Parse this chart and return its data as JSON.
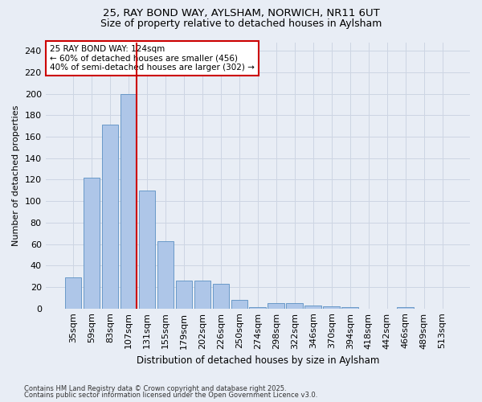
{
  "title1": "25, RAY BOND WAY, AYLSHAM, NORWICH, NR11 6UT",
  "title2": "Size of property relative to detached houses in Aylsham",
  "xlabel": "Distribution of detached houses by size in Aylsham",
  "ylabel": "Number of detached properties",
  "categories": [
    "35sqm",
    "59sqm",
    "83sqm",
    "107sqm",
    "131sqm",
    "155sqm",
    "179sqm",
    "202sqm",
    "226sqm",
    "250sqm",
    "274sqm",
    "298sqm",
    "322sqm",
    "346sqm",
    "370sqm",
    "394sqm",
    "418sqm",
    "442sqm",
    "466sqm",
    "489sqm",
    "513sqm"
  ],
  "values": [
    29,
    122,
    171,
    200,
    110,
    63,
    26,
    26,
    23,
    8,
    1,
    5,
    5,
    3,
    2,
    1,
    0,
    0,
    1,
    0,
    0
  ],
  "bar_color": "#aec6e8",
  "bar_edge_color": "#5a8fc2",
  "vline_color": "#cc0000",
  "annotation_text": "25 RAY BOND WAY: 124sqm\n← 60% of detached houses are smaller (456)\n40% of semi-detached houses are larger (302) →",
  "annotation_box_color": "#ffffff",
  "annotation_box_edge": "#cc0000",
  "ylim": [
    0,
    248
  ],
  "yticks": [
    0,
    20,
    40,
    60,
    80,
    100,
    120,
    140,
    160,
    180,
    200,
    220,
    240
  ],
  "grid_color": "#cdd5e3",
  "bg_color": "#e8edf5",
  "footer1": "Contains HM Land Registry data © Crown copyright and database right 2025.",
  "footer2": "Contains public sector information licensed under the Open Government Licence v3.0."
}
